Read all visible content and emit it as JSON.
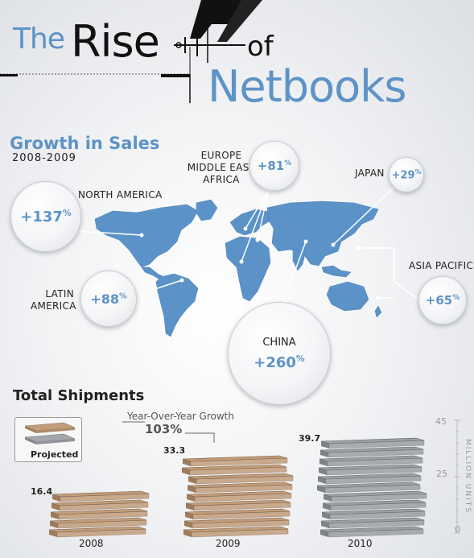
{
  "title": {
    "the": "The",
    "rise": "Rise",
    "of": "of",
    "netbooks": "Netbooks"
  },
  "growth": {
    "title": "Growth in Sales",
    "years": "2008-2009",
    "regions": [
      {
        "id": "north-america",
        "label_lines": [
          "NORTH AMERICA"
        ],
        "value": "+137",
        "unit": "%"
      },
      {
        "id": "emea",
        "label_lines": [
          "EUROPE",
          "MIDDLE EAST",
          "AFRICA"
        ],
        "value": "+81",
        "unit": "%"
      },
      {
        "id": "japan",
        "label_lines": [
          "JAPAN"
        ],
        "value": "+29",
        "unit": "%"
      },
      {
        "id": "latin-america",
        "label_lines": [
          "LATIN",
          "AMERICA"
        ],
        "value": "+88",
        "unit": "%"
      },
      {
        "id": "asia-pacific",
        "label_lines": [
          "ASIA PACIFIC"
        ],
        "value": "+65",
        "unit": "%"
      },
      {
        "id": "china",
        "label_lines": [
          "CHINA"
        ],
        "value": "+260",
        "unit": "%"
      }
    ]
  },
  "shipments": {
    "title": "Total Shipments",
    "legend_label": "Projected",
    "yoy_label": "Year-Over-Year Growth",
    "yoy_value": "103%",
    "units_label": "MILLION UNITS",
    "axis_ticks": [
      "45",
      "25",
      "0"
    ],
    "axis_max": 45,
    "bars": [
      {
        "year": "2008",
        "value": 16.4,
        "projected": false
      },
      {
        "year": "2009",
        "value": 33.3,
        "projected": false
      },
      {
        "year": "2010",
        "value": 39.7,
        "projected": true
      }
    ]
  },
  "colors": {
    "accent_blue": "#5e93c6",
    "map_blue": "#5b92c8",
    "stack_tan": "#c29d7a",
    "stack_gray": "#9c9fa4"
  }
}
